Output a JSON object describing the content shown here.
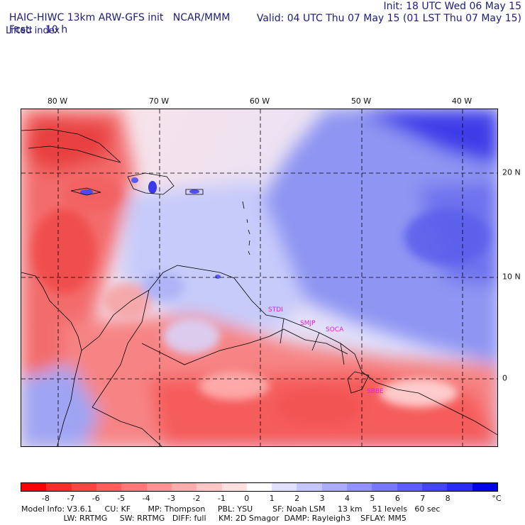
{
  "header": {
    "model_title": "HAIC-HIWC 13km ARW-GFS init",
    "org": "NCAR/MMM",
    "init": "Init: 18 UTC Wed 06 May 15",
    "fcst_label": "Fcst:",
    "fcst_value": "10 h",
    "valid": "Valid: 04 UTC Thu 07 May 15 (01 LST Thu 07 May 15)",
    "field": "Lifted index"
  },
  "map": {
    "lon_labels": [
      "80 W",
      "70 W",
      "60 W",
      "50 W",
      "40 W"
    ],
    "lat_labels": [
      "20 N",
      "10 N",
      "0"
    ],
    "stations": [
      "STDI",
      "SMJP",
      "SOCA",
      "SBBE"
    ]
  },
  "colorbar": {
    "unit": "°C",
    "tick_labels": [
      "-8",
      "-7",
      "-6",
      "-5",
      "-4",
      "-3",
      "-2",
      "-1",
      "0",
      "1",
      "2",
      "3",
      "4",
      "5",
      "6",
      "7",
      "8"
    ],
    "colors": [
      "#ff0000",
      "#ff2a2a",
      "#ff4444",
      "#ff5e5e",
      "#ff7878",
      "#ff9292",
      "#ffacac",
      "#ffc6c6",
      "#ffe0e0",
      "#ffffff",
      "#e0e0ff",
      "#c6c6ff",
      "#acacff",
      "#9292ff",
      "#7878ff",
      "#5e5eff",
      "#4444ff",
      "#2a2aff",
      "#0000ee"
    ]
  },
  "footer": {
    "line1": "Model Info: V3.6.1     CU: KF       MP: Thompson     PBL: YSU        SF: Noah LSM     13 km    51 levels   60 sec",
    "line2": "                 LW: RRTMG     SW: RRTMG   DIFF: full     KM: 2D Smagor  DAMP: Rayleigh3    SFLAY: MM5"
  }
}
